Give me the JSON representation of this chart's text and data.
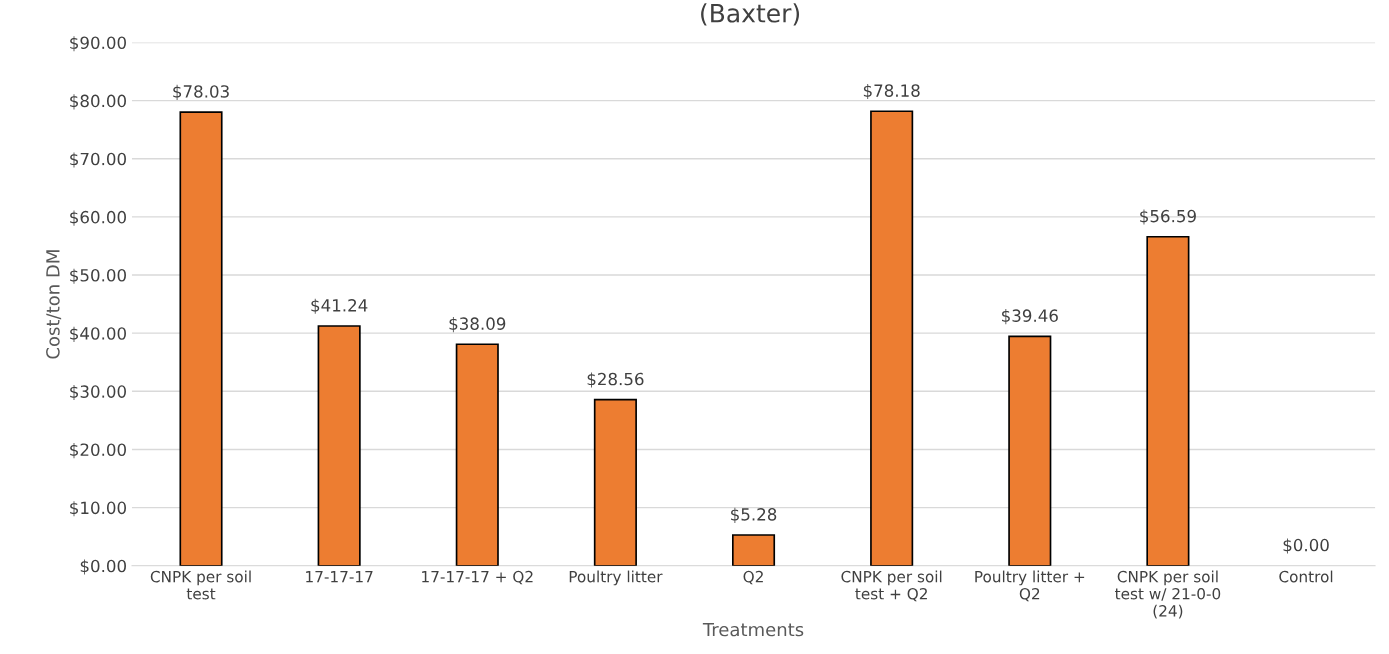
{
  "chart_data": {
    "type": "bar",
    "title": "(Baxter)",
    "xlabel": "Treatments",
    "ylabel": "Cost/ton DM",
    "categories": [
      "CNPK per soil\ntest",
      "17-17-17",
      "17-17-17 + Q2",
      "Poultry litter",
      "Q2",
      "CNPK per soil\ntest + Q2",
      "Poultry litter +\nQ2",
      "CNPK per soil\ntest w/ 21-0-0\n(24)",
      "Control"
    ],
    "values": [
      78.03,
      41.24,
      38.09,
      28.56,
      5.28,
      78.18,
      39.46,
      56.59,
      0.0
    ],
    "value_labels": [
      "$78.03",
      "$41.24",
      "$38.09",
      "$28.56",
      "$5.28",
      "$78.18",
      "$39.46",
      "$56.59",
      "$0.00"
    ],
    "color": "#ed7d31",
    "ylim": [
      0,
      90
    ],
    "yticks": [
      {
        "value": 0,
        "label": "$0.00"
      },
      {
        "value": 10,
        "label": "$10.00"
      },
      {
        "value": 20,
        "label": "$20.00"
      },
      {
        "value": 30,
        "label": "$30.00"
      },
      {
        "value": 40,
        "label": "$40.00"
      },
      {
        "value": 50,
        "label": "$50.00"
      },
      {
        "value": 60,
        "label": "$60.00"
      },
      {
        "value": 70,
        "label": "$70.00"
      },
      {
        "value": 80,
        "label": "$80.00"
      },
      {
        "value": 90,
        "label": "$90.00"
      }
    ],
    "grid": "y"
  }
}
